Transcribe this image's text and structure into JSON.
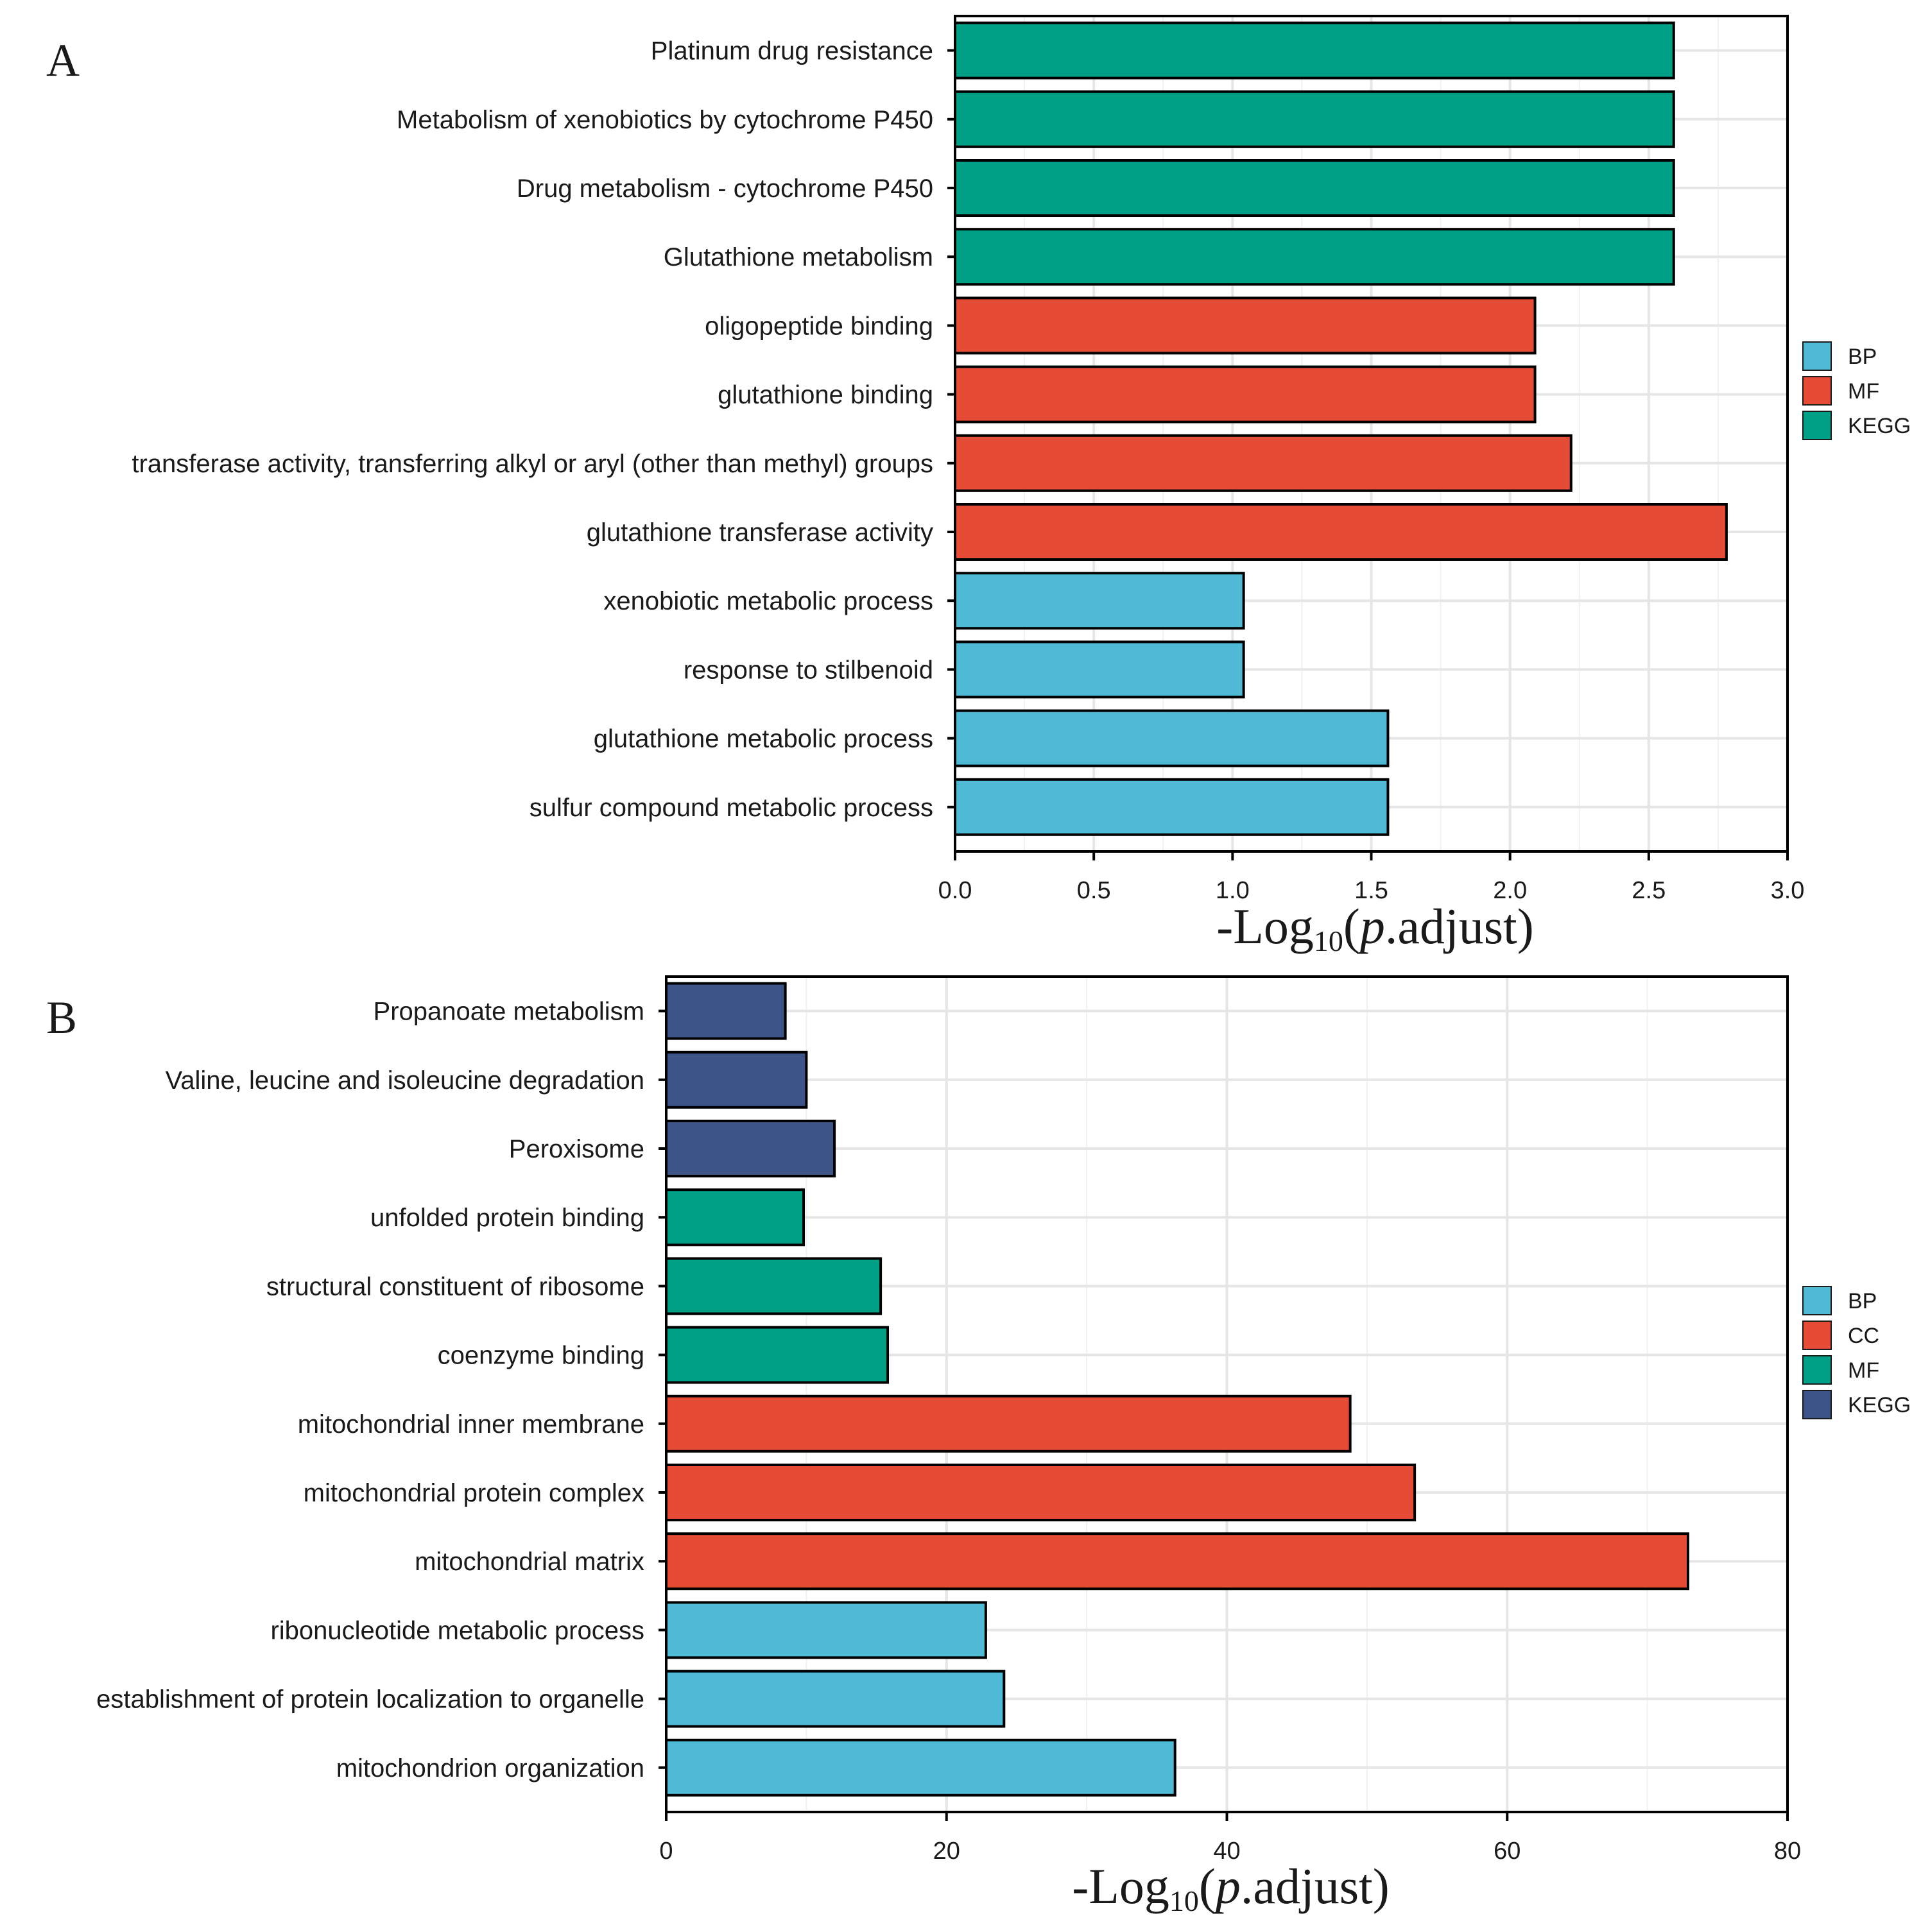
{
  "colors": {
    "BP": "#4EBAD6",
    "CC": "#E64B35",
    "MF_A": "#E64B35",
    "MF_B": "#00A087",
    "KEGG_A": "#00A087",
    "KEGG_B": "#3C5488"
  },
  "chart_data": [
    {
      "type": "bar",
      "orientation": "horizontal",
      "panel": "A",
      "xlabel": {
        "prefix": "-Log",
        "sub": "10",
        "open": "(",
        "italic": "p",
        "rest": ".adjust)"
      },
      "xlim": [
        0,
        3
      ],
      "ticks": [
        0,
        0.5,
        1,
        1.5,
        2,
        2.5,
        3
      ],
      "tick_labels": [
        "0.0",
        "0.5",
        "1.0",
        "1.5",
        "2.0",
        "2.5",
        "3.0"
      ],
      "legend": {
        "position": "right",
        "entries": [
          {
            "name": "BP",
            "color": "#4EBAD6"
          },
          {
            "name": "MF",
            "color": "#E64B35"
          },
          {
            "name": "KEGG",
            "color": "#00A087"
          }
        ]
      },
      "categories": [
        "Platinum drug resistance",
        "Metabolism of xenobiotics by cytochrome P450",
        "Drug metabolism - cytochrome P450",
        "Glutathione metabolism",
        "oligopeptide binding",
        "glutathione binding",
        "transferase activity, transferring alkyl or aryl (other than methyl) groups",
        "glutathione transferase activity",
        "xenobiotic metabolic process",
        "response to stilbenoid",
        "glutathione metabolic process",
        "sulfur compound metabolic process"
      ],
      "values": [
        2.59,
        2.59,
        2.59,
        2.59,
        2.09,
        2.09,
        2.22,
        2.78,
        1.04,
        1.04,
        1.56,
        1.56
      ],
      "groups": [
        "KEGG",
        "KEGG",
        "KEGG",
        "KEGG",
        "MF",
        "MF",
        "MF",
        "MF",
        "BP",
        "BP",
        "BP",
        "BP"
      ]
    },
    {
      "type": "bar",
      "orientation": "horizontal",
      "panel": "B",
      "xlabel": {
        "prefix": "-Log",
        "sub": "10",
        "open": "(",
        "italic": "p",
        "rest": ".adjust)"
      },
      "xlim": [
        0,
        80
      ],
      "ticks": [
        0,
        20,
        40,
        60,
        80
      ],
      "tick_labels": [
        "0",
        "20",
        "40",
        "60",
        "80"
      ],
      "legend": {
        "position": "right",
        "entries": [
          {
            "name": "BP",
            "color": "#4EBAD6"
          },
          {
            "name": "CC",
            "color": "#E64B35"
          },
          {
            "name": "MF",
            "color": "#00A087"
          },
          {
            "name": "KEGG",
            "color": "#3C5488"
          }
        ]
      },
      "categories": [
        "Propanoate metabolism",
        "Valine, leucine and isoleucine degradation",
        "Peroxisome",
        "unfolded protein binding",
        "structural constituent of ribosome",
        "coenzyme binding",
        "mitochondrial inner membrane",
        "mitochondrial protein complex",
        "mitochondrial matrix",
        "ribonucleotide metabolic process",
        "establishment of protein localization to organelle",
        "mitochondrion organization"
      ],
      "values": [
        8.5,
        10,
        12,
        9.8,
        15.3,
        15.8,
        48.8,
        53.4,
        72.9,
        22.8,
        24.1,
        36.3
      ],
      "groups": [
        "KEGG",
        "KEGG",
        "KEGG",
        "MF",
        "MF",
        "MF",
        "CC",
        "CC",
        "CC",
        "BP",
        "BP",
        "BP"
      ]
    }
  ]
}
